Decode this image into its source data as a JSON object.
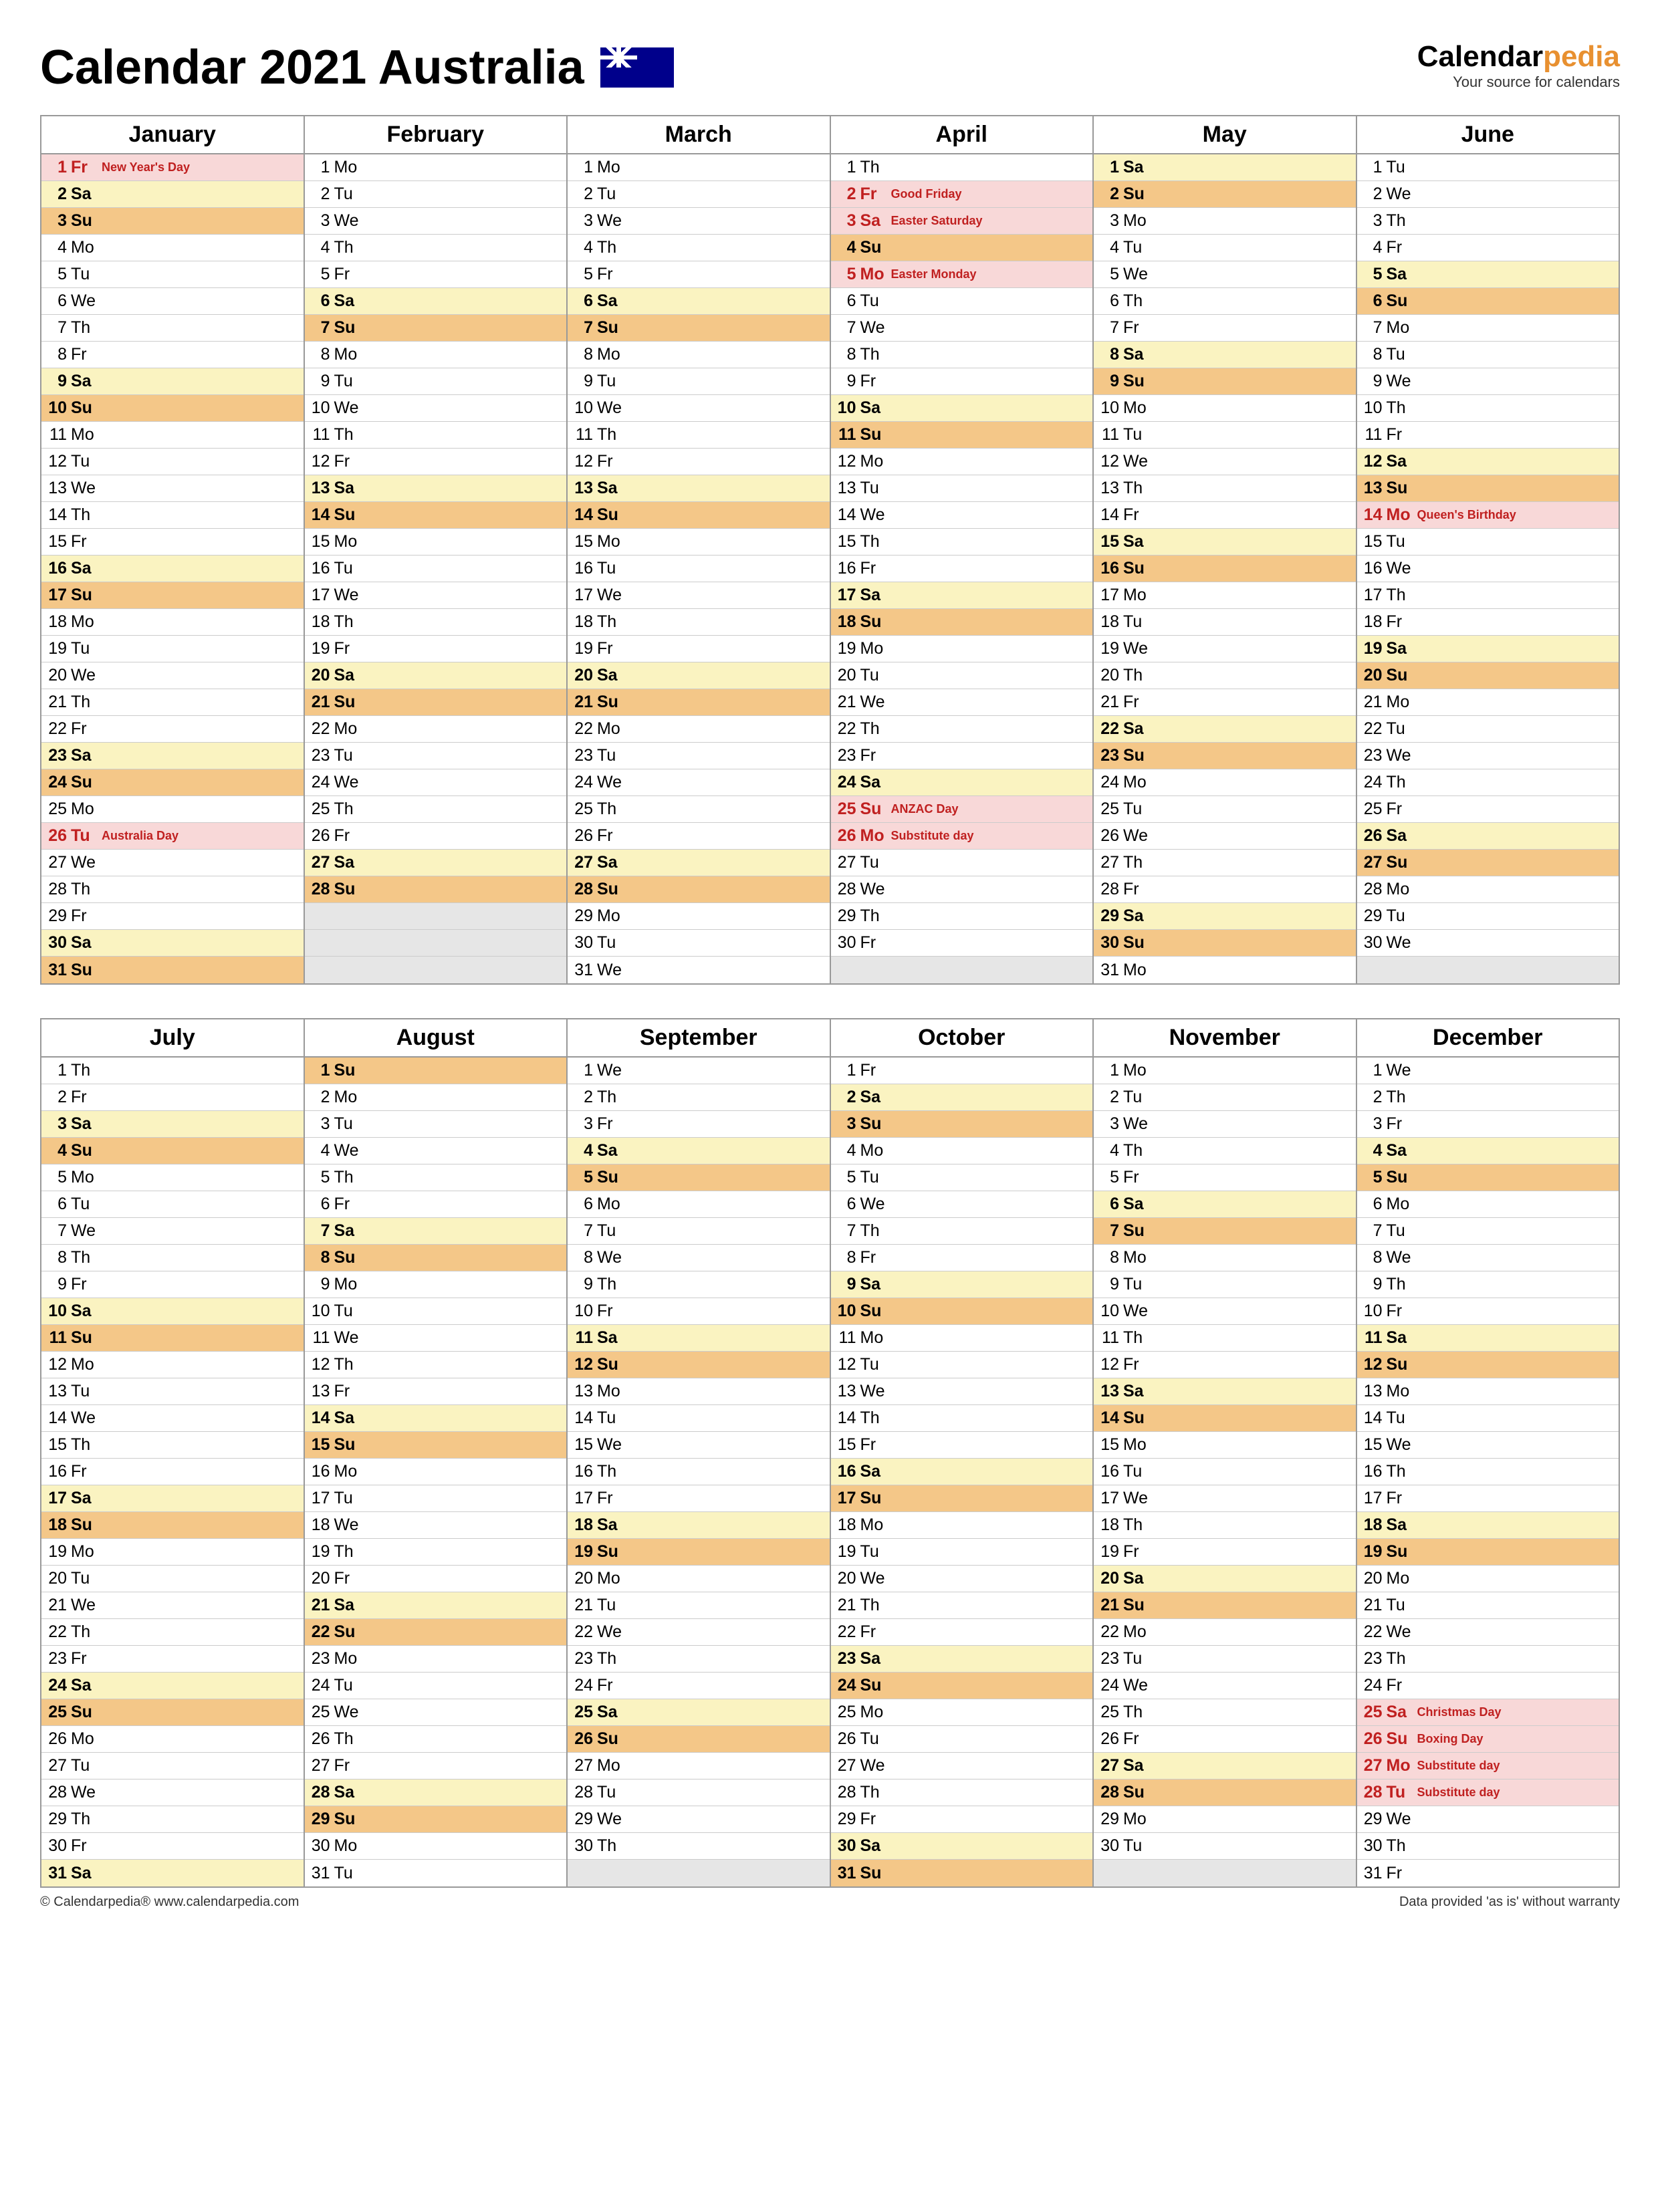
{
  "title": "Calendar 2021 Australia",
  "brand": {
    "name1": "Calendar",
    "name2": "pedia",
    "tagline": "Your source for calendars"
  },
  "footer": {
    "left": "© Calendarpedia®   www.calendarpedia.com",
    "right": "Data provided 'as is' without warranty"
  },
  "colors": {
    "saturday": "#faf3c1",
    "sunday": "#f4c788",
    "holiday": "#f8d8d8",
    "empty": "#e6e6e6",
    "border": "#999999"
  },
  "dow": [
    "Mo",
    "Tu",
    "We",
    "Th",
    "Fr",
    "Sa",
    "Su"
  ],
  "year": 2021,
  "rows_per_half": 31,
  "halves": [
    [
      {
        "name": "January",
        "days": 31,
        "start": 4,
        "holidays": {
          "1": "New Year's Day",
          "26": "Australia Day"
        }
      },
      {
        "name": "February",
        "days": 28,
        "start": 0,
        "holidays": {}
      },
      {
        "name": "March",
        "days": 31,
        "start": 0,
        "holidays": {}
      },
      {
        "name": "April",
        "days": 30,
        "start": 3,
        "holidays": {
          "2": "Good Friday",
          "3": "Easter Saturday",
          "5": "Easter Monday",
          "25": "ANZAC Day",
          "26": "Substitute day"
        }
      },
      {
        "name": "May",
        "days": 31,
        "start": 5,
        "holidays": {}
      },
      {
        "name": "June",
        "days": 30,
        "start": 1,
        "holidays": {
          "14": "Queen's Birthday"
        }
      }
    ],
    [
      {
        "name": "July",
        "days": 31,
        "start": 3,
        "holidays": {}
      },
      {
        "name": "August",
        "days": 31,
        "start": 6,
        "holidays": {}
      },
      {
        "name": "September",
        "days": 30,
        "start": 2,
        "holidays": {}
      },
      {
        "name": "October",
        "days": 31,
        "start": 4,
        "holidays": {}
      },
      {
        "name": "November",
        "days": 30,
        "start": 0,
        "holidays": {}
      },
      {
        "name": "December",
        "days": 31,
        "start": 2,
        "holidays": {
          "25": "Christmas Day",
          "26": "Boxing Day",
          "27": "Substitute day",
          "28": "Substitute day"
        }
      }
    ]
  ]
}
